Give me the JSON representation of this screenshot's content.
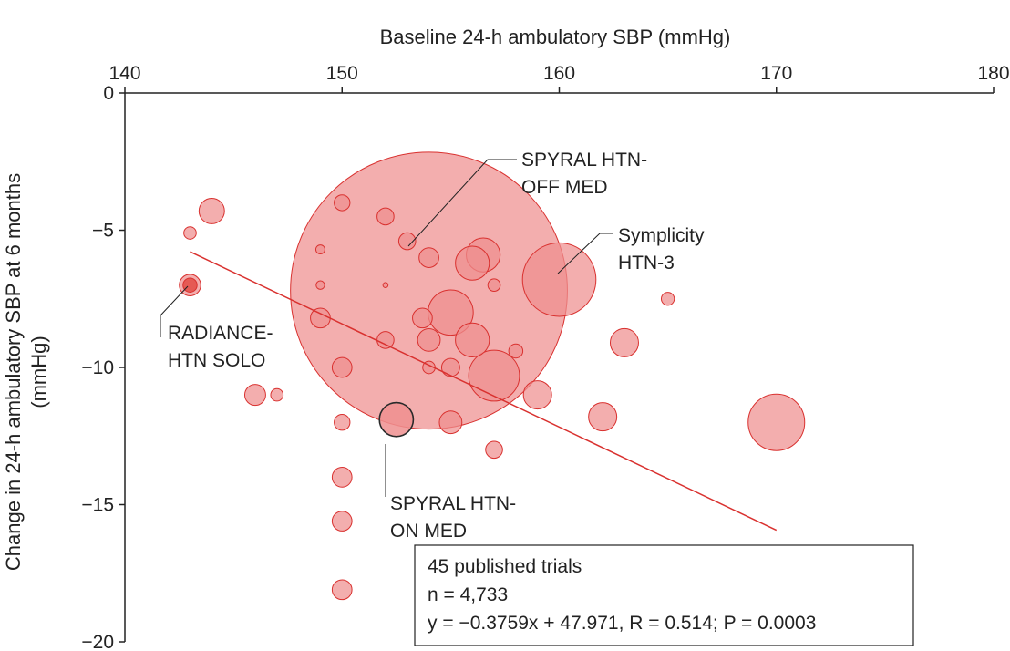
{
  "chart_data": {
    "type": "scatter",
    "xlabel": "Baseline 24-h ambulatory SBP (mmHg)",
    "ylabel_line1": "Change in 24-h ambulatory SBP at 6 months",
    "ylabel_line2": "(mmHg)",
    "xlim": [
      140,
      180
    ],
    "ylim": [
      -20,
      0
    ],
    "x_ticks": [
      140,
      150,
      160,
      170,
      180
    ],
    "y_ticks": [
      0,
      -5,
      -10,
      -15,
      -20
    ],
    "x_axis_position": "top",
    "grid": false,
    "colors": {
      "bubble_fill": "#ee8f8f",
      "bubble_stroke": "#d9312f",
      "highlight_fill": "#e4554f",
      "outlined_stroke": "#2a2a2a",
      "trend_line": "#d9312f"
    },
    "points": [
      {
        "x": 154,
        "y": -7.2,
        "size": 49
      },
      {
        "x": 160,
        "y": -6.8,
        "size": 13
      },
      {
        "x": 170,
        "y": -12.0,
        "size": 10
      },
      {
        "x": 157,
        "y": -10.3,
        "size": 9
      },
      {
        "x": 155,
        "y": -8.0,
        "size": 8
      },
      {
        "x": 156.5,
        "y": -5.9,
        "size": 6
      },
      {
        "x": 156,
        "y": -6.2,
        "size": 6
      },
      {
        "x": 156,
        "y": -9.0,
        "size": 6
      },
      {
        "x": 152.5,
        "y": -11.9,
        "size": 6,
        "style": "outlined"
      },
      {
        "x": 159,
        "y": -11.0,
        "size": 5
      },
      {
        "x": 163,
        "y": -9.1,
        "size": 5
      },
      {
        "x": 162,
        "y": -11.8,
        "size": 5
      },
      {
        "x": 144,
        "y": -4.3,
        "size": 4.5
      },
      {
        "x": 143,
        "y": -7.0,
        "size": 3.8
      },
      {
        "x": 143,
        "y": -7.0,
        "size": 2.5,
        "style": "highlight"
      },
      {
        "x": 155,
        "y": -12.0,
        "size": 4
      },
      {
        "x": 154,
        "y": -9.0,
        "size": 4
      },
      {
        "x": 154,
        "y": -6.0,
        "size": 3.5
      },
      {
        "x": 153.7,
        "y": -8.2,
        "size": 3.5
      },
      {
        "x": 155,
        "y": -10.0,
        "size": 3.2
      },
      {
        "x": 149,
        "y": -8.2,
        "size": 3.5
      },
      {
        "x": 146,
        "y": -11.0,
        "size": 3.7
      },
      {
        "x": 150,
        "y": -10.0,
        "size": 3.5
      },
      {
        "x": 150,
        "y": -14.0,
        "size": 3.5
      },
      {
        "x": 150,
        "y": -15.6,
        "size": 3.5
      },
      {
        "x": 150,
        "y": -18.1,
        "size": 3.5
      },
      {
        "x": 157,
        "y": -13.0,
        "size": 3
      },
      {
        "x": 153,
        "y": -5.4,
        "size": 3
      },
      {
        "x": 152,
        "y": -9.0,
        "size": 3
      },
      {
        "x": 152,
        "y": -4.5,
        "size": 3
      },
      {
        "x": 150,
        "y": -12.0,
        "size": 2.8
      },
      {
        "x": 150,
        "y": -4.0,
        "size": 2.8
      },
      {
        "x": 158,
        "y": -9.4,
        "size": 2.5
      },
      {
        "x": 154,
        "y": -10.0,
        "size": 2.2
      },
      {
        "x": 165,
        "y": -7.5,
        "size": 2.3
      },
      {
        "x": 157,
        "y": -7.0,
        "size": 2.2
      },
      {
        "x": 147,
        "y": -11.0,
        "size": 2.2
      },
      {
        "x": 143,
        "y": -5.1,
        "size": 2.2
      },
      {
        "x": 149,
        "y": -5.7,
        "size": 1.6
      },
      {
        "x": 149,
        "y": -7.0,
        "size": 1.5
      },
      {
        "x": 152,
        "y": -7.0,
        "size": 0.9
      }
    ],
    "regression": {
      "equation": "y = −0.3759x + 47.971,",
      "slope": -0.3759,
      "intercept": 47.971,
      "x_range": [
        143,
        170
      ]
    },
    "stats_box": {
      "line1": "45 published trials",
      "line2": "n = 4,733",
      "line3": "y = −0.3759x + 47.971,  R = 0.514; P = 0.0003"
    },
    "annotations": [
      {
        "line1": "SPYRAL HTN-",
        "line2": "OFF MED",
        "target": [
          153.2,
          -5.4
        ]
      },
      {
        "line1": "Symplicity",
        "line2": "HTN-3",
        "target": [
          160,
          -6.6
        ]
      },
      {
        "line1": "RADIANCE-",
        "line2": "HTN SOLO",
        "target": [
          143,
          -7.0
        ]
      },
      {
        "line1": "SPYRAL HTN-",
        "line2": "ON MED",
        "target": [
          152.5,
          -12.9
        ]
      }
    ]
  }
}
